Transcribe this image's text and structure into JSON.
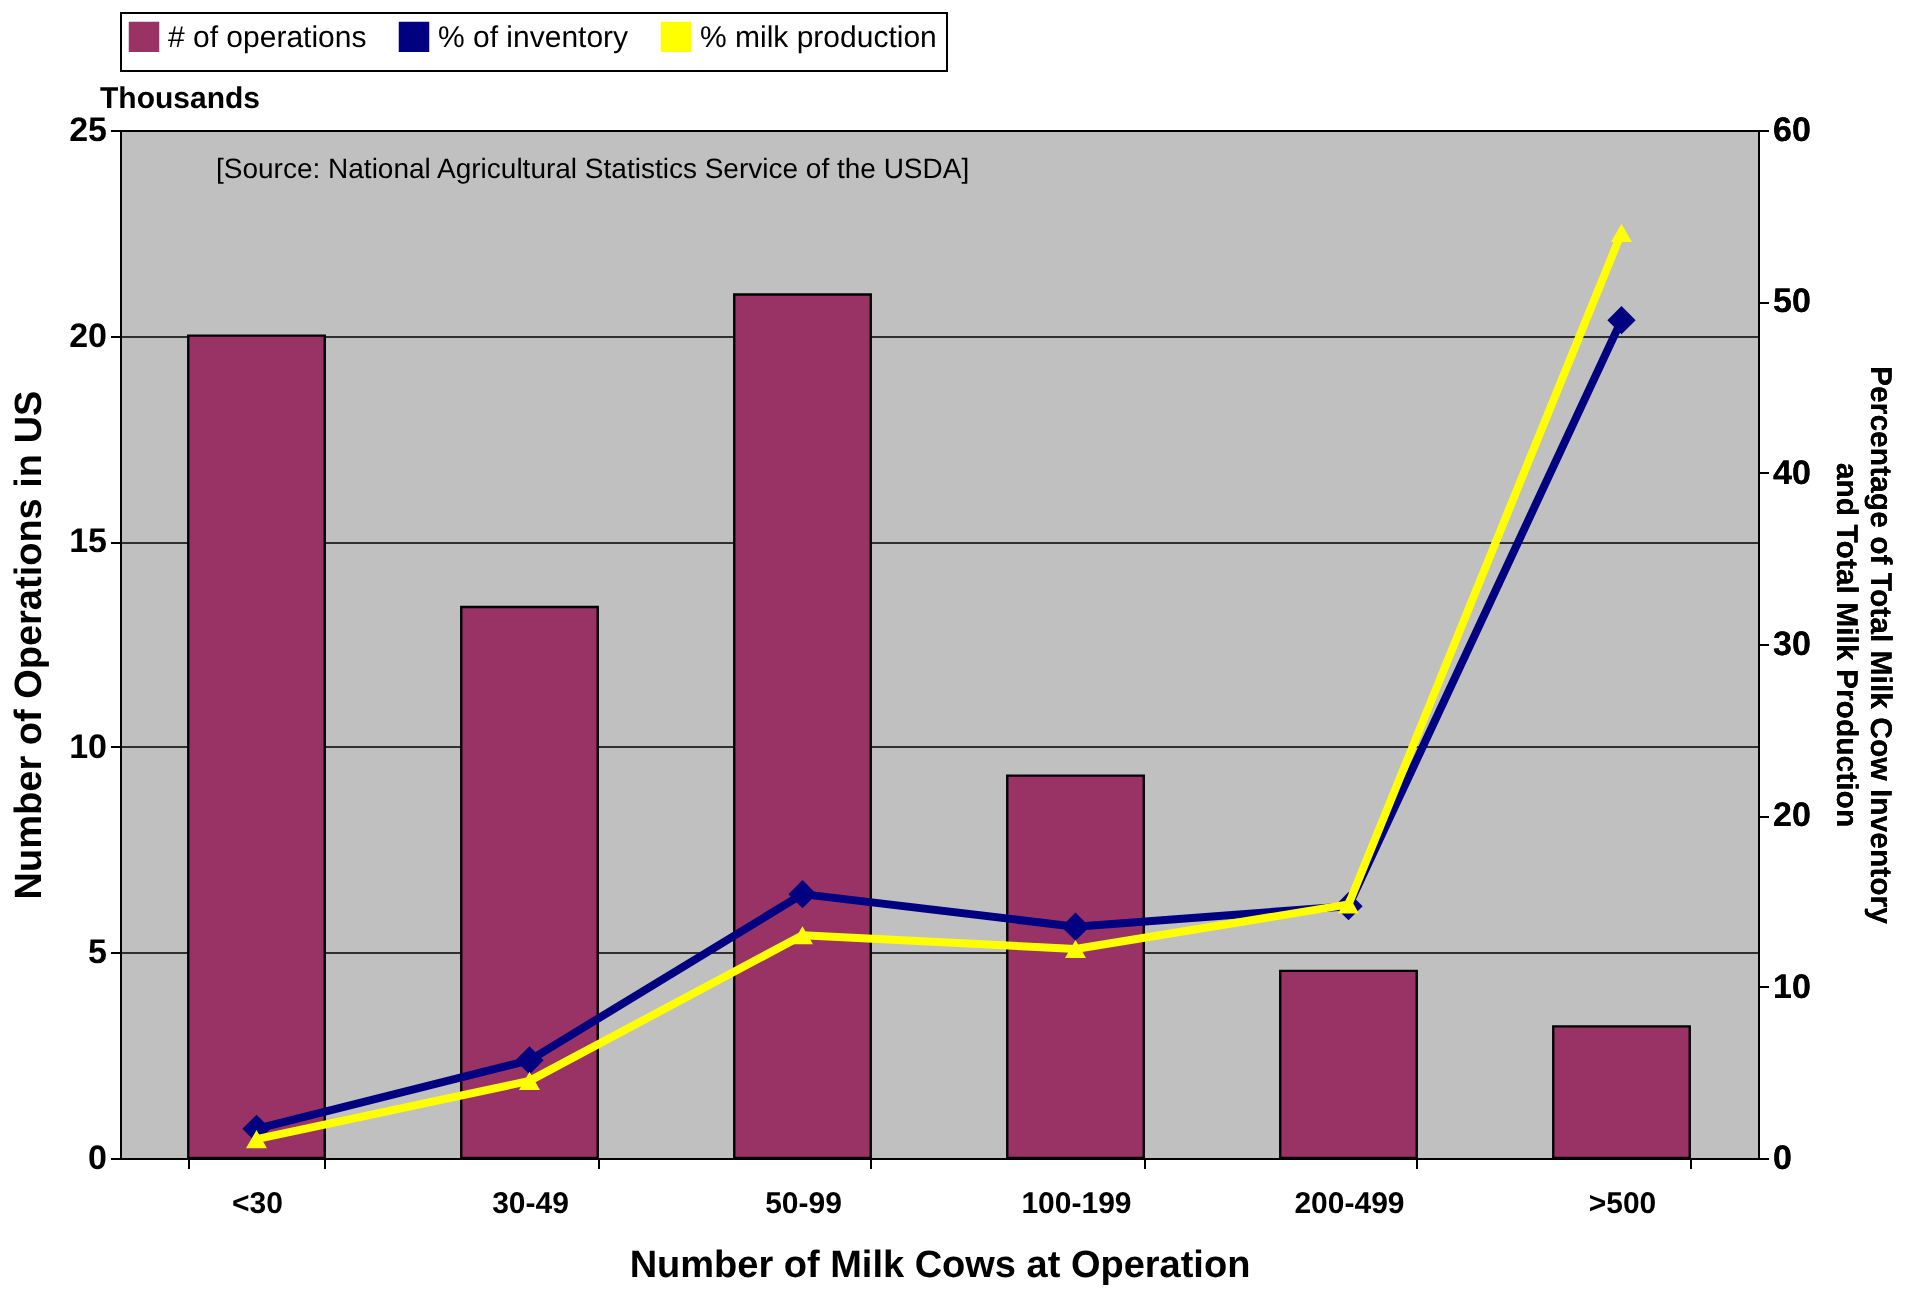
{
  "chart_data": {
    "type": "bar",
    "xlabel": "Number of Milk Cows at Operation",
    "ylabel": "Number of Operations in US",
    "y2label": "Percentage of Total Milk Cow Inventory\nand Total Milk Production",
    "annotations": [
      "Thousands",
      "[Source: National Agricultural Statistics Service of the USDA]"
    ],
    "categories": [
      "<30",
      "30-49",
      "50-99",
      "100-199",
      "200-499",
      ">500"
    ],
    "series": [
      {
        "name": "# of operations",
        "color": "#993366",
        "values": [
          20.0,
          13.4,
          21.0,
          9.3,
          4.55,
          3.2
        ]
      },
      {
        "name": "% of inventory",
        "type": "line",
        "axis": "y2",
        "marker": "diamond",
        "color": "#000080",
        "values": [
          1.7,
          5.7,
          15.4,
          13.5,
          14.7,
          48.9
        ]
      },
      {
        "name": "% milk production",
        "type": "line",
        "axis": "y2",
        "marker": "triangle",
        "color": "#ffff00",
        "values": [
          1.1,
          4.5,
          13.0,
          12.2,
          14.8,
          54.0
        ]
      }
    ],
    "ylim": [
      0,
      25
    ],
    "yticks": [
      0,
      5,
      10,
      15,
      20,
      25
    ],
    "y2lim": [
      0,
      60
    ],
    "y2ticks": [
      0,
      10,
      20,
      30,
      40,
      50,
      60
    ],
    "grid": "y",
    "legend": "top"
  }
}
